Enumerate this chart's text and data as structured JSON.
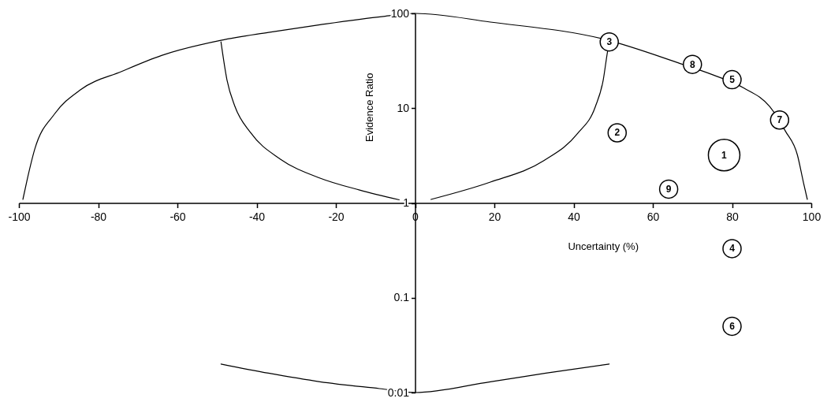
{
  "chart_data": {
    "type": "bubble",
    "xlabel": "Uncertainty (%)",
    "ylabel": "Evidence Ratio",
    "xlim": [
      -100,
      100
    ],
    "xticks": [
      -100,
      -80,
      -60,
      -40,
      -20,
      0,
      20,
      40,
      60,
      80,
      100
    ],
    "ylim": [
      0.01,
      100
    ],
    "yticks": [
      0.01,
      0.1,
      1,
      10,
      100
    ],
    "log": "y",
    "grid": false,
    "line_style": "solid",
    "series": [
      {
        "type": "line",
        "color": "#000000",
        "x": [
          -99,
          -98,
          -96,
          -91,
          -84.5,
          -74,
          -64,
          -49,
          -37,
          -24,
          -8,
          0,
          19,
          48,
          66.5,
          75,
          83,
          89.5,
          93.5,
          96.5,
          98,
          99
        ],
        "values": [
          1.09,
          1.7,
          3.7,
          8.7,
          15.6,
          24.5,
          36,
          52,
          63,
          76,
          93,
          100,
          81,
          53,
          30,
          22.6,
          16.3,
          10.4,
          5.7,
          3.2,
          1.66,
          1.09
        ]
      },
      {
        "type": "line",
        "color": "#000000",
        "x": [
          -49,
          -47.5,
          -45.5,
          -41.5,
          -34,
          -24,
          -14,
          -4
        ],
        "values": [
          50,
          20,
          10.5,
          5.5,
          2.9,
          1.83,
          1.37,
          1.08
        ]
      },
      {
        "type": "line",
        "color": "#000000",
        "x": [
          4,
          19,
          32.5,
          41,
          45.5,
          47.5,
          48.5,
          49
        ],
        "values": [
          1.09,
          1.66,
          2.8,
          5.4,
          10.4,
          20,
          38,
          50
        ]
      },
      {
        "type": "line",
        "color": "#000000",
        "x": [
          -49,
          -37,
          -24,
          -9,
          0,
          19,
          33,
          49
        ],
        "values": [
          0.02,
          0.016,
          0.013,
          0.011,
          0.01,
          0.013,
          0.016,
          0.02
        ]
      },
      {
        "color": "#000000",
        "marker": "circle",
        "x": [
          78,
          51,
          49,
          80,
          80,
          80,
          92,
          70,
          64
        ],
        "values": [
          3.2,
          5.5,
          50,
          0.33,
          20,
          0.05,
          7.5,
          29,
          1.4
        ],
        "sizes": [
          1,
          0.33,
          0.33,
          0.33,
          0.33,
          0.33,
          0.33,
          0.33,
          0.33
        ]
      }
    ],
    "annotations": [
      {
        "text": "1",
        "x": 78,
        "y": 3.2
      },
      {
        "text": "2",
        "x": 51,
        "y": 5.5
      },
      {
        "text": "3",
        "x": 49,
        "y": 50
      },
      {
        "text": "4",
        "x": 80,
        "y": 0.33
      },
      {
        "text": "5",
        "x": 80,
        "y": 20
      },
      {
        "text": "6",
        "x": 80,
        "y": 0.05
      },
      {
        "text": "7",
        "x": 92,
        "y": 7.5
      },
      {
        "text": "8",
        "x": 70,
        "y": 29
      },
      {
        "text": "9",
        "x": 64,
        "y": 1.4
      }
    ]
  }
}
